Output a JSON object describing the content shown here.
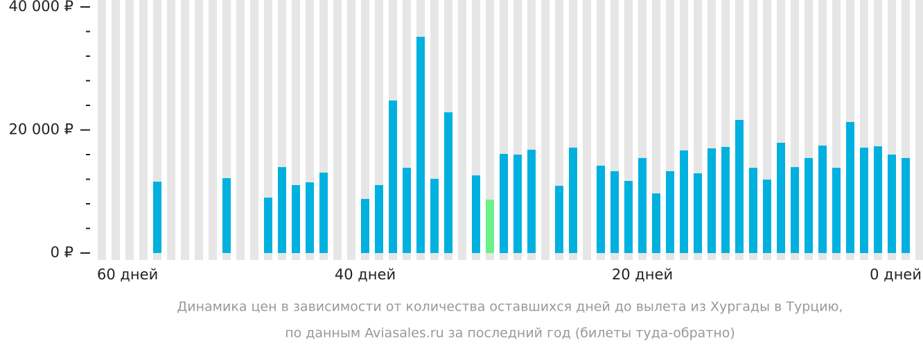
{
  "chart_data": {
    "type": "bar",
    "categories": [
      "60 дней",
      null,
      null,
      null,
      null,
      null,
      null,
      null,
      null,
      null,
      null,
      null,
      null,
      null,
      null,
      null,
      null,
      null,
      null,
      "40 дней",
      null,
      null,
      null,
      null,
      null,
      null,
      null,
      null,
      null,
      null,
      null,
      null,
      null,
      null,
      null,
      null,
      null,
      null,
      null,
      "20 дней",
      null,
      null,
      null,
      null,
      null,
      null,
      null,
      null,
      null,
      null,
      null,
      null,
      null,
      null,
      null,
      null,
      null,
      null,
      null,
      "0 дней"
    ],
    "values": [
      null,
      null,
      null,
      null,
      11600,
      null,
      null,
      null,
      null,
      12170,
      null,
      null,
      9010,
      13970,
      11040,
      11490,
      13070,
      null,
      null,
      8790,
      11040,
      24790,
      13860,
      35150,
      12060,
      22870,
      null,
      12620,
      8680,
      16110,
      16000,
      16790,
      null,
      10930,
      17130,
      null,
      14200,
      13300,
      11720,
      15440,
      9690,
      13300,
      16680,
      12960,
      17010,
      17240,
      21630,
      13860,
      11940,
      17920,
      13970,
      15440,
      17470,
      13860,
      21300,
      17130,
      17350,
      16000,
      15440,
      null
    ],
    "color": "#00b0de",
    "highlight_index": 28,
    "highlight_color": "#6ef089",
    "background_color": "#e6e6e6",
    "ylim": [
      0,
      40000
    ],
    "yticks": [
      {
        "value": 0,
        "label": "0 ₽"
      },
      {
        "value": 20000,
        "label": "20 000 ₽"
      },
      {
        "value": 40000,
        "label": "40 000 ₽"
      }
    ],
    "yminorticks": [
      4000,
      8000,
      12000,
      16000,
      24000,
      28000,
      32000,
      36000
    ],
    "caption": [
      "Динамика цен в зависимости от количества оставшихся дней до вылета из Хургады в Турцию,",
      "по данным Aviasales.ru за последний год (билеты туда-обратно)"
    ]
  }
}
